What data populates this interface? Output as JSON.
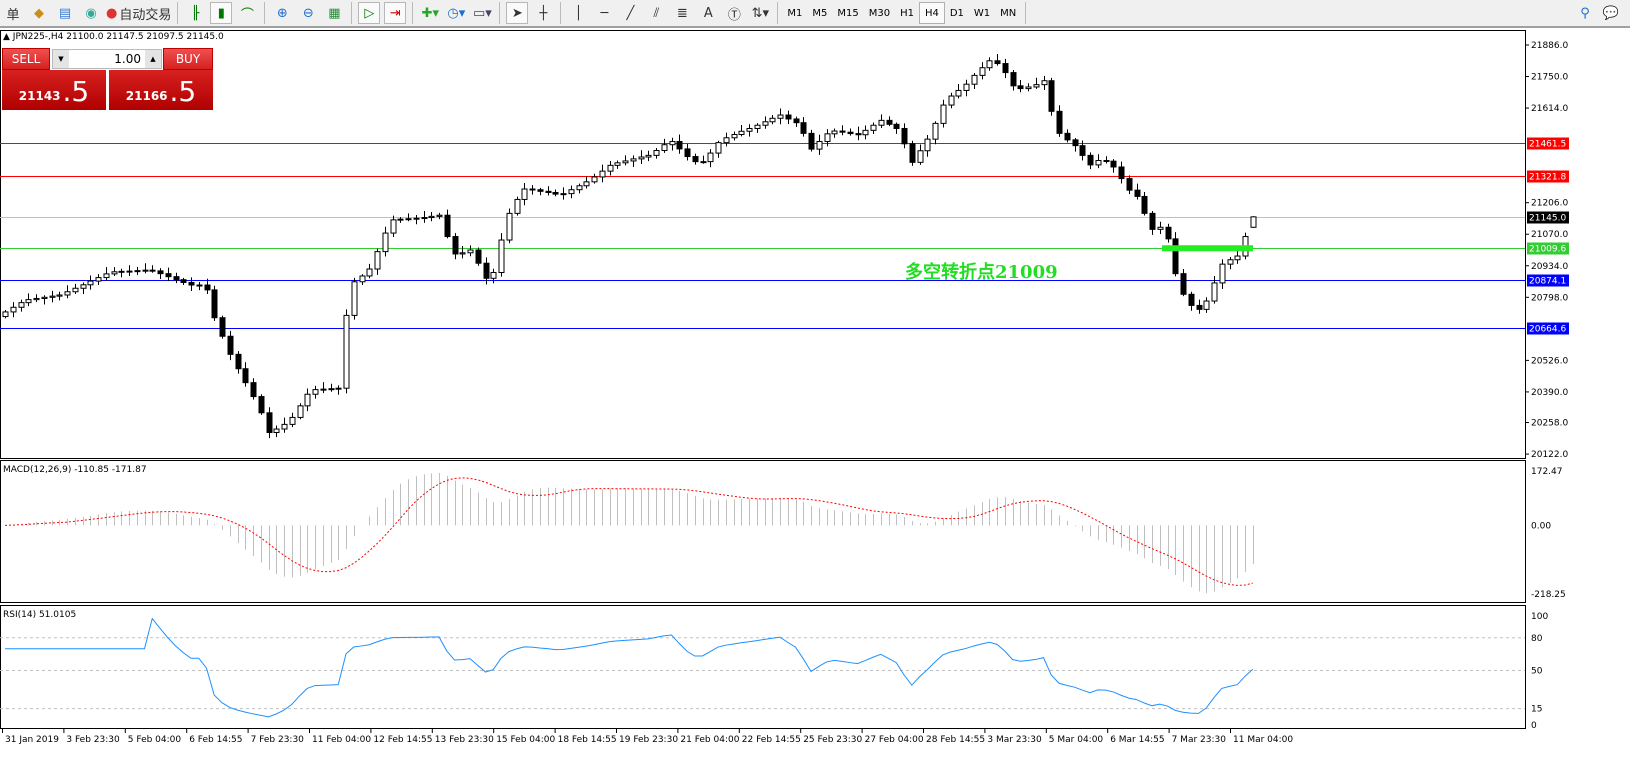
{
  "toolbar": {
    "left_text": "单",
    "auto_trading": "自动交易",
    "icons": [
      "gold-bars-icon",
      "market-watch-icon",
      "signal-icon",
      "auto-trading-icon",
      "bar-chart-icon",
      "candlestick-icon",
      "line-chart-icon",
      "zoom-in-icon",
      "zoom-out-icon",
      "tile-windows-icon",
      "autoscroll-icon",
      "chart-shift-icon",
      "indicators-icon",
      "periods-icon",
      "templates-icon",
      "cursor-icon",
      "crosshair-icon",
      "vertical-line-icon",
      "horizontal-line-icon",
      "trendline-icon",
      "equidistant-channel-icon",
      "fibonacci-icon",
      "text-icon",
      "text-label-icon",
      "arrows-icon"
    ],
    "text_tool": "A",
    "timeframes": [
      "M1",
      "M5",
      "M15",
      "M30",
      "H1",
      "H4",
      "D1",
      "W1",
      "MN"
    ],
    "active_timeframe": "H4"
  },
  "chart": {
    "title": "JPN225-,H4  21100.0 21147.5 21097.5 21145.0",
    "symbol": "JPN225-",
    "trade_panel": {
      "sell_label": "SELL",
      "buy_label": "BUY",
      "lot": "1.00",
      "sell_price_main": "21143",
      "sell_price_pips": ".5",
      "buy_price_main": "21166",
      "buy_price_pips": ".5"
    },
    "annotation": "多空转折点21009",
    "price_axis": [
      "21886.0",
      "21750.0",
      "21614.0",
      "21206.0",
      "21070.0",
      "20934.0",
      "20798.0",
      "20526.0",
      "20390.0",
      "20258.0",
      "20122.0"
    ],
    "levels": [
      {
        "value": "21461.5",
        "color": "#ff0000"
      },
      {
        "value": "21321.8",
        "color": "#ff0000"
      },
      {
        "value": "21145.0",
        "color": "#c0c0c0",
        "label_bg": "#000000"
      },
      {
        "value": "21009.6",
        "color": "#33cc33"
      },
      {
        "value": "20874.1",
        "color": "#0000ff"
      },
      {
        "value": "20664.6",
        "color": "#0000ff"
      }
    ],
    "time_axis": [
      "31 Jan 2019",
      "3 Feb 23:30",
      "5 Feb 04:00",
      "6 Feb 14:55",
      "7 Feb 23:30",
      "11 Feb 04:00",
      "12 Feb 14:55",
      "13 Feb 23:30",
      "15 Feb 04:00",
      "18 Feb 14:55",
      "19 Feb 23:30",
      "21 Feb 04:00",
      "22 Feb 14:55",
      "25 Feb 23:30",
      "27 Feb 04:00",
      "28 Feb 14:55",
      "3 Mar 23:30",
      "5 Mar 04:00",
      "6 Mar 14:55",
      "7 Mar 23:30",
      "11 Mar 04:00"
    ]
  },
  "chart_data": {
    "type": "candlestick",
    "price_range": [
      20122.0,
      21886.0
    ],
    "closes": [
      20735,
      20755,
      20775,
      20788,
      20793,
      20798,
      20803,
      20808,
      20822,
      20837,
      20852,
      20868,
      20883,
      20899,
      20908,
      20910,
      20911,
      20913,
      20915,
      20912,
      20900,
      20887,
      20874,
      20862,
      20851,
      20851,
      20830,
      20710,
      20630,
      20552,
      20490,
      20430,
      20370,
      20300,
      20215,
      20230,
      20250,
      20280,
      20330,
      20380,
      20400,
      20402,
      20404,
      20406,
      20720,
      20865,
      20890,
      20920,
      20995,
      21075,
      21132,
      21135,
      21137,
      21139,
      21142,
      21147,
      21152,
      21060,
      20985,
      20990,
      21002,
      20945,
      20880,
      20905,
      21045,
      21160,
      21220,
      21265,
      21262,
      21255,
      21250,
      21243,
      21245,
      21262,
      21279,
      21296,
      21317,
      21342,
      21367,
      21378,
      21386,
      21395,
      21403,
      21410,
      21431,
      21456,
      21470,
      21438,
      21405,
      21383,
      21383,
      21420,
      21465,
      21486,
      21500,
      21514,
      21526,
      21540,
      21555,
      21570,
      21584,
      21567,
      21551,
      21505,
      21437,
      21470,
      21503,
      21515,
      21510,
      21504,
      21499,
      21518,
      21540,
      21561,
      21544,
      21526,
      21460,
      21380,
      21430,
      21480,
      21548,
      21627,
      21666,
      21690,
      21717,
      21755,
      21788,
      21818,
      21806,
      21767,
      21710,
      21698,
      21705,
      21715,
      21732,
      21600,
      21505,
      21477,
      21452,
      21410,
      21369,
      21388,
      21385,
      21360,
      21310,
      21260,
      21233,
      21160,
      21091,
      21100,
      21050,
      20900,
      20811,
      20763,
      20746,
      20782,
      20860,
      20941,
      20960,
      20976,
      21060,
      21145
    ],
    "last_bar": {
      "open": 21100.0,
      "high": 21147.5,
      "low": 21097.5,
      "close": 21145.0
    }
  },
  "macd": {
    "label": "MACD(12,26,9) -110.85 -171.87",
    "axis": [
      "172.47",
      "0.00",
      "-218.25"
    ],
    "range": [
      -218.25,
      172.47
    ],
    "histogram_color": "#c0c0c0",
    "signal_color": "#ff0000"
  },
  "rsi": {
    "label": "RSI(14) 51.0105",
    "axis": [
      "100",
      "80",
      "50",
      "15",
      "0"
    ],
    "levels": [
      80,
      50,
      15
    ],
    "line_color": "#1e90ff"
  }
}
